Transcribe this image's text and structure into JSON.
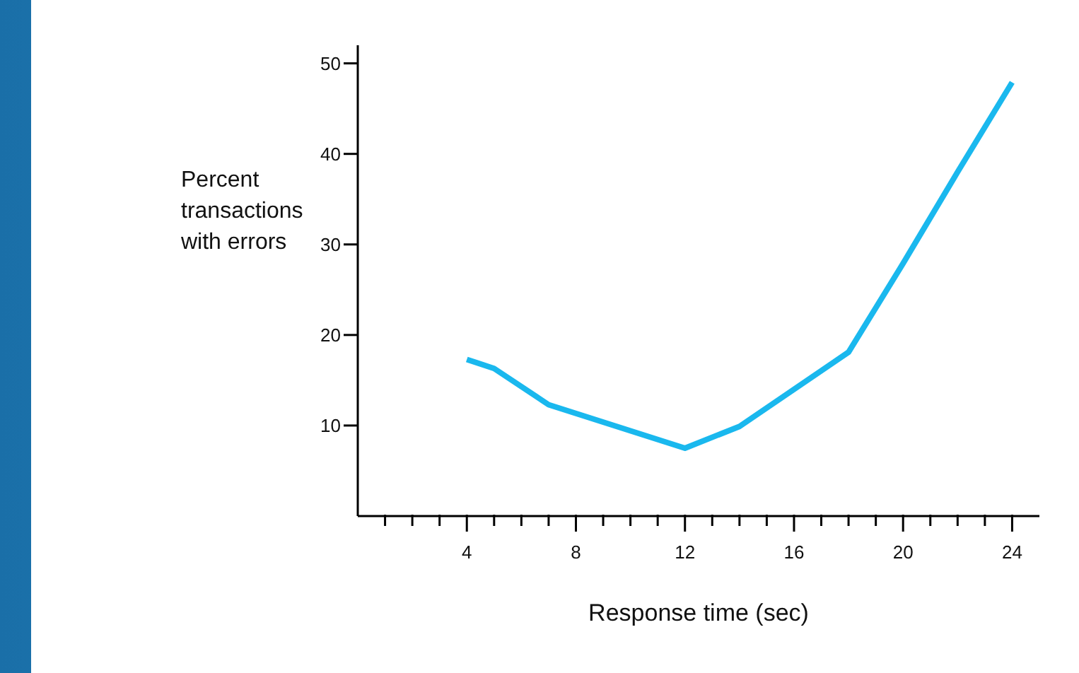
{
  "chart_data": {
    "type": "line",
    "xlabel": "Response time (sec)",
    "ylabel": "Percent transactions with errors",
    "x": [
      4,
      5,
      7,
      12,
      14,
      18,
      20,
      22,
      24
    ],
    "series": [
      {
        "color": "#1ab8ee",
        "values": [
          17.3,
          16.3,
          12.3,
          7.5,
          9.9,
          18.1,
          27.9,
          38,
          47.9
        ]
      }
    ],
    "xlim": [
      0,
      25
    ],
    "xticks": [
      {
        "value": 1,
        "label": null
      },
      {
        "value": 2,
        "label": null
      },
      {
        "value": 3,
        "label": null
      },
      4,
      {
        "value": 5,
        "label": null
      },
      {
        "value": 6,
        "label": null
      },
      {
        "value": 7,
        "label": null
      },
      8,
      {
        "value": 9,
        "label": null
      },
      {
        "value": 10,
        "label": null
      },
      {
        "value": 11,
        "label": null
      },
      12,
      {
        "value": 13,
        "label": null
      },
      {
        "value": 14,
        "label": null
      },
      {
        "value": 15,
        "label": null
      },
      16,
      {
        "value": 17,
        "label": null
      },
      {
        "value": 18,
        "label": null
      },
      {
        "value": 19,
        "label": null
      },
      20,
      {
        "value": 21,
        "label": null
      },
      {
        "value": 22,
        "label": null
      },
      {
        "value": 23,
        "label": null
      },
      24
    ],
    "ylim": [
      0,
      52
    ],
    "yticks": [
      10,
      20,
      30,
      40,
      50
    ],
    "grid": false,
    "legend": false,
    "marker": "none",
    "line_style": "solid"
  }
}
